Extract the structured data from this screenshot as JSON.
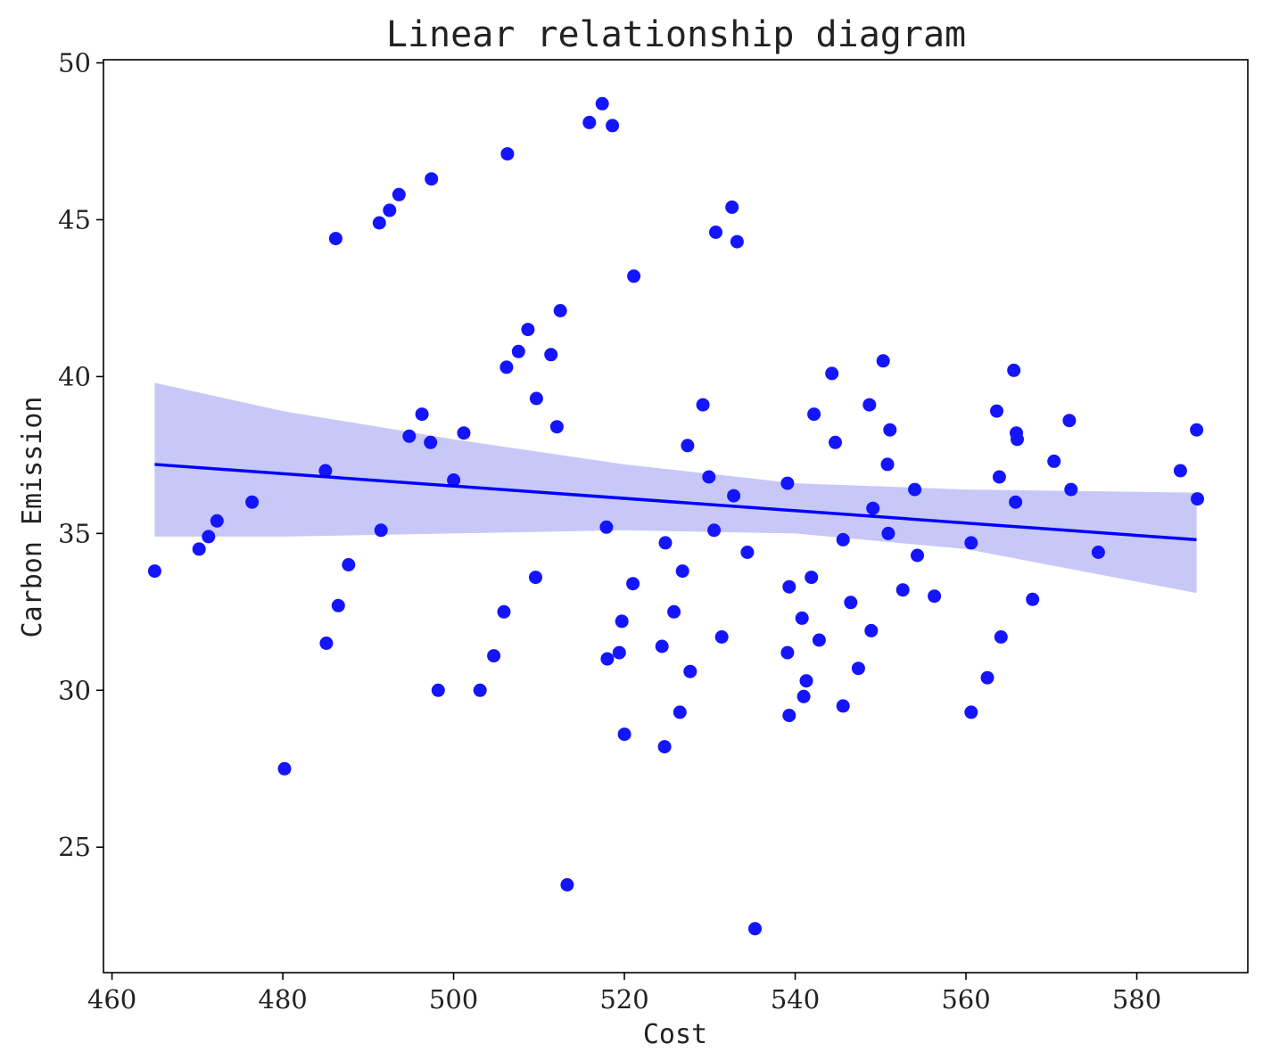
{
  "chart_data": {
    "type": "scatter",
    "title": "Linear relationship diagram",
    "xlabel": "Cost",
    "ylabel": "Carbon Emission",
    "xlim": [
      459,
      593
    ],
    "ylim": [
      21,
      50.1
    ],
    "xticks": [
      460,
      480,
      500,
      520,
      540,
      560,
      580
    ],
    "yticks": [
      25,
      30,
      35,
      40,
      45,
      50
    ],
    "grid": false,
    "legend": "none",
    "colors": {
      "points": "#1414ff",
      "line": "#0000ff",
      "band": "#c8c8f8",
      "axes": "#000000"
    },
    "regression": {
      "x": [
        465,
        587
      ],
      "y": [
        37.2,
        34.8
      ]
    },
    "confidence_band": {
      "x": [
        465,
        480,
        500,
        520,
        540,
        560,
        587
      ],
      "upper": [
        39.8,
        38.9,
        38.0,
        37.2,
        36.6,
        36.4,
        36.3
      ],
      "lower": [
        34.9,
        34.9,
        35.0,
        35.1,
        35.0,
        34.5,
        33.1
      ]
    },
    "points": [
      {
        "x": 465.0,
        "y": 33.8
      },
      {
        "x": 470.2,
        "y": 34.5
      },
      {
        "x": 471.3,
        "y": 34.9
      },
      {
        "x": 472.3,
        "y": 35.4
      },
      {
        "x": 476.4,
        "y": 36.0
      },
      {
        "x": 480.2,
        "y": 27.5
      },
      {
        "x": 485.0,
        "y": 37.0
      },
      {
        "x": 485.1,
        "y": 31.5
      },
      {
        "x": 486.2,
        "y": 44.4
      },
      {
        "x": 486.5,
        "y": 32.7
      },
      {
        "x": 487.7,
        "y": 34.0
      },
      {
        "x": 491.3,
        "y": 44.9
      },
      {
        "x": 491.5,
        "y": 35.1
      },
      {
        "x": 492.5,
        "y": 45.3
      },
      {
        "x": 493.6,
        "y": 45.8
      },
      {
        "x": 494.8,
        "y": 38.1
      },
      {
        "x": 496.3,
        "y": 38.8
      },
      {
        "x": 497.3,
        "y": 37.9
      },
      {
        "x": 497.4,
        "y": 46.3
      },
      {
        "x": 498.2,
        "y": 30.0
      },
      {
        "x": 500.0,
        "y": 36.7
      },
      {
        "x": 501.2,
        "y": 38.2
      },
      {
        "x": 503.1,
        "y": 30.0
      },
      {
        "x": 504.7,
        "y": 31.1
      },
      {
        "x": 505.9,
        "y": 32.5
      },
      {
        "x": 506.2,
        "y": 40.3
      },
      {
        "x": 506.3,
        "y": 47.1
      },
      {
        "x": 507.6,
        "y": 40.8
      },
      {
        "x": 508.7,
        "y": 41.5
      },
      {
        "x": 509.6,
        "y": 33.6
      },
      {
        "x": 509.7,
        "y": 39.3
      },
      {
        "x": 511.4,
        "y": 40.7
      },
      {
        "x": 512.1,
        "y": 38.4
      },
      {
        "x": 512.5,
        "y": 42.1
      },
      {
        "x": 513.3,
        "y": 23.8
      },
      {
        "x": 515.9,
        "y": 48.1
      },
      {
        "x": 517.4,
        "y": 48.7
      },
      {
        "x": 517.9,
        "y": 35.2
      },
      {
        "x": 518.0,
        "y": 31.0
      },
      {
        "x": 518.6,
        "y": 48.0
      },
      {
        "x": 519.4,
        "y": 31.2
      },
      {
        "x": 519.7,
        "y": 32.2
      },
      {
        "x": 520.0,
        "y": 28.6
      },
      {
        "x": 521.0,
        "y": 33.4
      },
      {
        "x": 521.1,
        "y": 43.2
      },
      {
        "x": 524.4,
        "y": 31.4
      },
      {
        "x": 524.7,
        "y": 28.2
      },
      {
        "x": 524.8,
        "y": 34.7
      },
      {
        "x": 525.8,
        "y": 32.5
      },
      {
        "x": 526.5,
        "y": 29.3
      },
      {
        "x": 526.8,
        "y": 33.8
      },
      {
        "x": 527.4,
        "y": 37.8
      },
      {
        "x": 527.7,
        "y": 30.6
      },
      {
        "x": 529.2,
        "y": 39.1
      },
      {
        "x": 529.9,
        "y": 36.8
      },
      {
        "x": 530.5,
        "y": 35.1
      },
      {
        "x": 530.7,
        "y": 44.6
      },
      {
        "x": 531.4,
        "y": 31.7
      },
      {
        "x": 532.6,
        "y": 45.4
      },
      {
        "x": 532.8,
        "y": 36.2
      },
      {
        "x": 533.2,
        "y": 44.3
      },
      {
        "x": 534.4,
        "y": 34.4
      },
      {
        "x": 535.3,
        "y": 22.4
      },
      {
        "x": 539.1,
        "y": 36.6
      },
      {
        "x": 539.1,
        "y": 31.2
      },
      {
        "x": 539.3,
        "y": 33.3
      },
      {
        "x": 539.3,
        "y": 29.2
      },
      {
        "x": 540.8,
        "y": 32.3
      },
      {
        "x": 541.0,
        "y": 29.8
      },
      {
        "x": 541.3,
        "y": 30.3
      },
      {
        "x": 541.9,
        "y": 33.6
      },
      {
        "x": 542.2,
        "y": 38.8
      },
      {
        "x": 542.8,
        "y": 31.6
      },
      {
        "x": 544.3,
        "y": 40.1
      },
      {
        "x": 544.7,
        "y": 37.9
      },
      {
        "x": 545.6,
        "y": 34.8
      },
      {
        "x": 545.6,
        "y": 29.5
      },
      {
        "x": 546.5,
        "y": 32.8
      },
      {
        "x": 547.4,
        "y": 30.7
      },
      {
        "x": 548.7,
        "y": 39.1
      },
      {
        "x": 548.9,
        "y": 31.9
      },
      {
        "x": 549.1,
        "y": 35.8
      },
      {
        "x": 550.3,
        "y": 40.5
      },
      {
        "x": 550.8,
        "y": 37.2
      },
      {
        "x": 550.9,
        "y": 35.0
      },
      {
        "x": 551.1,
        "y": 38.3
      },
      {
        "x": 552.6,
        "y": 33.2
      },
      {
        "x": 554.0,
        "y": 36.4
      },
      {
        "x": 554.3,
        "y": 34.3
      },
      {
        "x": 556.3,
        "y": 33.0
      },
      {
        "x": 560.6,
        "y": 34.7
      },
      {
        "x": 560.6,
        "y": 29.3
      },
      {
        "x": 562.5,
        "y": 30.4
      },
      {
        "x": 563.6,
        "y": 38.9
      },
      {
        "x": 563.9,
        "y": 36.8
      },
      {
        "x": 564.1,
        "y": 31.7
      },
      {
        "x": 565.6,
        "y": 40.2
      },
      {
        "x": 565.9,
        "y": 38.2
      },
      {
        "x": 565.8,
        "y": 36.0
      },
      {
        "x": 566.0,
        "y": 38.0
      },
      {
        "x": 567.8,
        "y": 32.9
      },
      {
        "x": 570.3,
        "y": 37.3
      },
      {
        "x": 572.1,
        "y": 38.6
      },
      {
        "x": 572.3,
        "y": 36.4
      },
      {
        "x": 575.5,
        "y": 34.4
      },
      {
        "x": 585.1,
        "y": 37.0
      },
      {
        "x": 587.0,
        "y": 38.3
      },
      {
        "x": 587.1,
        "y": 36.1
      }
    ]
  }
}
